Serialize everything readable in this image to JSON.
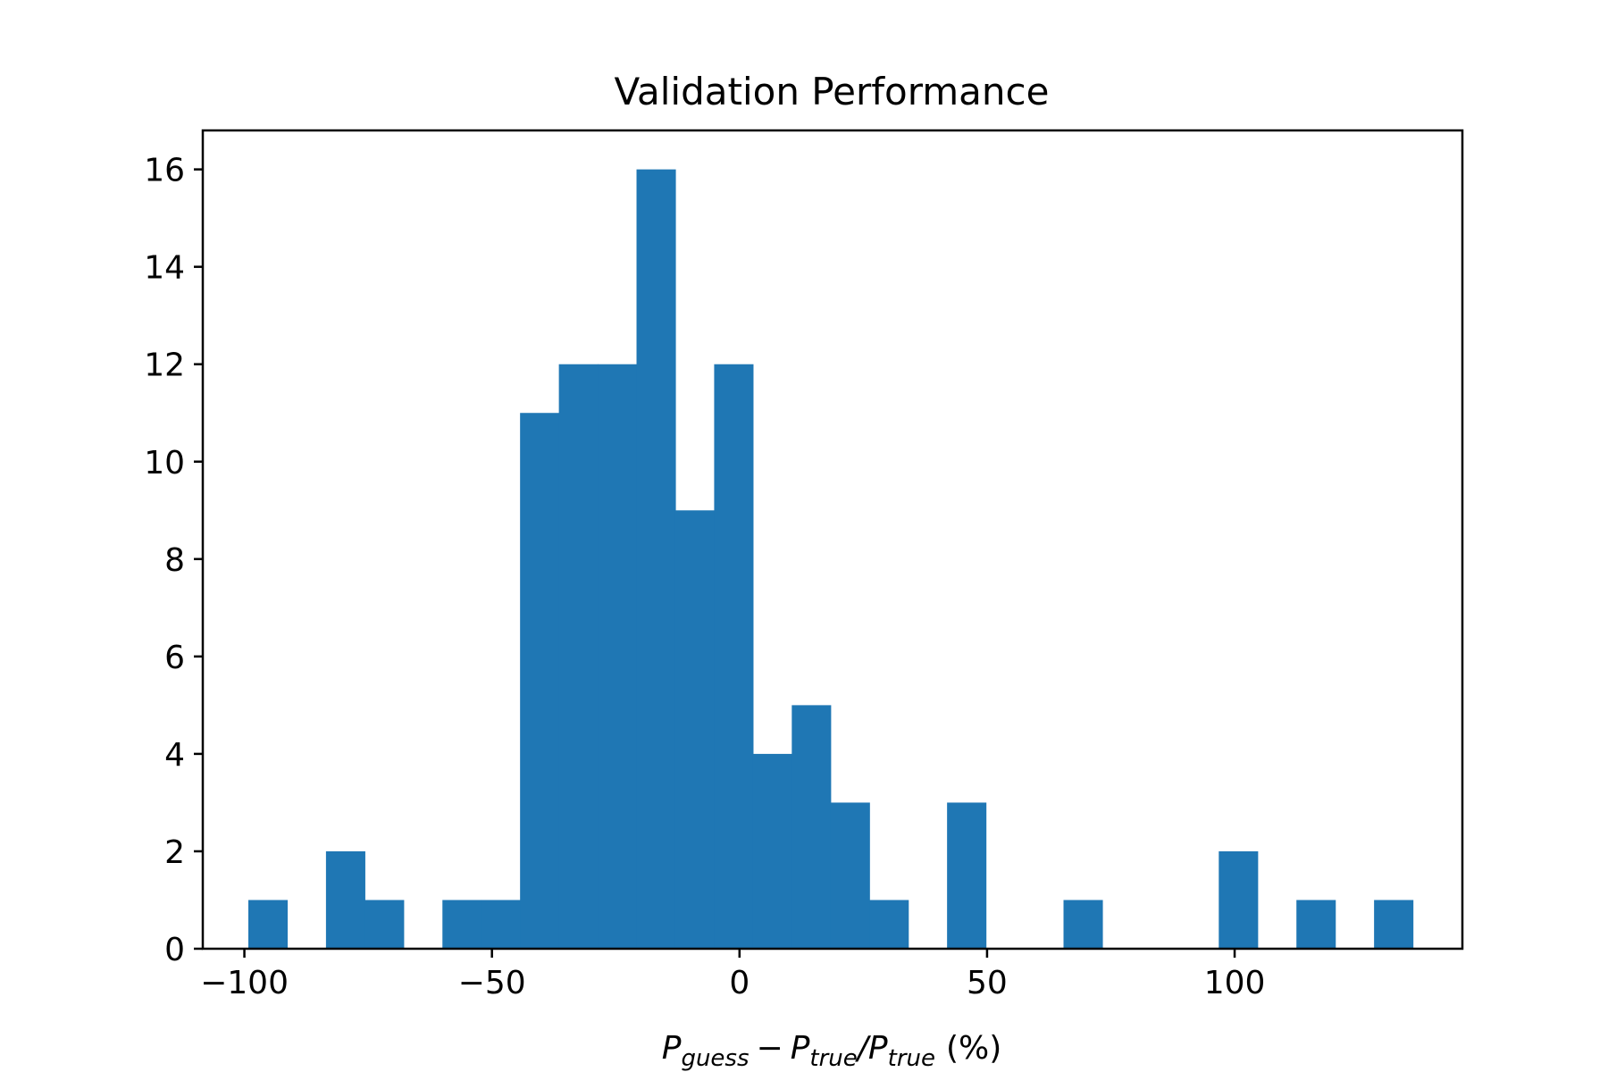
{
  "chart_data": {
    "type": "bar",
    "title": "Validation Performance",
    "xlabel": {
      "p": "P",
      "guess": "guess",
      "minus": "−",
      "true": "true",
      "slash": "/",
      "unit": "(%)"
    },
    "ylabel": "",
    "xlim": [
      -108.4,
      146.0
    ],
    "ylim": [
      0,
      16.8
    ],
    "xticks": [
      -100,
      -50,
      0,
      50,
      100
    ],
    "xtick_labels": [
      "−100",
      "−50",
      "0",
      "50",
      "100"
    ],
    "yticks": [
      0,
      2,
      4,
      6,
      8,
      10,
      12,
      14,
      16
    ],
    "ytick_labels": [
      "0",
      "2",
      "4",
      "6",
      "8",
      "10",
      "12",
      "14",
      "16"
    ],
    "bin_start": -99.2,
    "bin_width": 7.84,
    "counts": [
      1,
      0,
      2,
      1,
      0,
      1,
      1,
      11,
      12,
      12,
      16,
      9,
      12,
      4,
      5,
      3,
      1,
      0,
      3,
      0,
      0,
      1,
      0,
      0,
      0,
      2,
      0,
      1,
      0,
      1
    ],
    "bar_color": "#1f77b4",
    "grid": false
  }
}
